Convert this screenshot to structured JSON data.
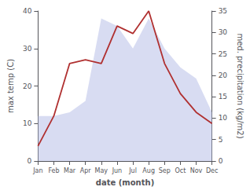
{
  "chart_data": {
    "type": "line",
    "xlabel": "date (month)",
    "ylabel": "max temp (C)",
    "y2label": "med. precipitation (kg/m2)",
    "categories": [
      "Jan",
      "Feb",
      "Mar",
      "Apr",
      "May",
      "Jun",
      "Jul",
      "Aug",
      "Sep",
      "Oct",
      "Nov",
      "Dec"
    ],
    "series": [
      {
        "type": "area",
        "color": "#b8c0e8",
        "values": [
          12,
          12,
          13,
          16,
          38,
          36,
          30,
          38,
          30,
          25,
          22,
          13
        ]
      },
      {
        "type": "line",
        "color": "#b03030",
        "values": [
          4,
          12,
          26,
          27,
          26,
          36,
          34,
          40,
          26,
          18,
          13,
          10
        ]
      }
    ],
    "ylim": [
      0,
      40
    ],
    "yticks": [
      0,
      10,
      20,
      30,
      40
    ],
    "y2lim": [
      0,
      35
    ],
    "y2ticks": [
      0,
      5,
      10,
      15,
      20,
      25,
      30,
      35
    ],
    "grid": false
  }
}
